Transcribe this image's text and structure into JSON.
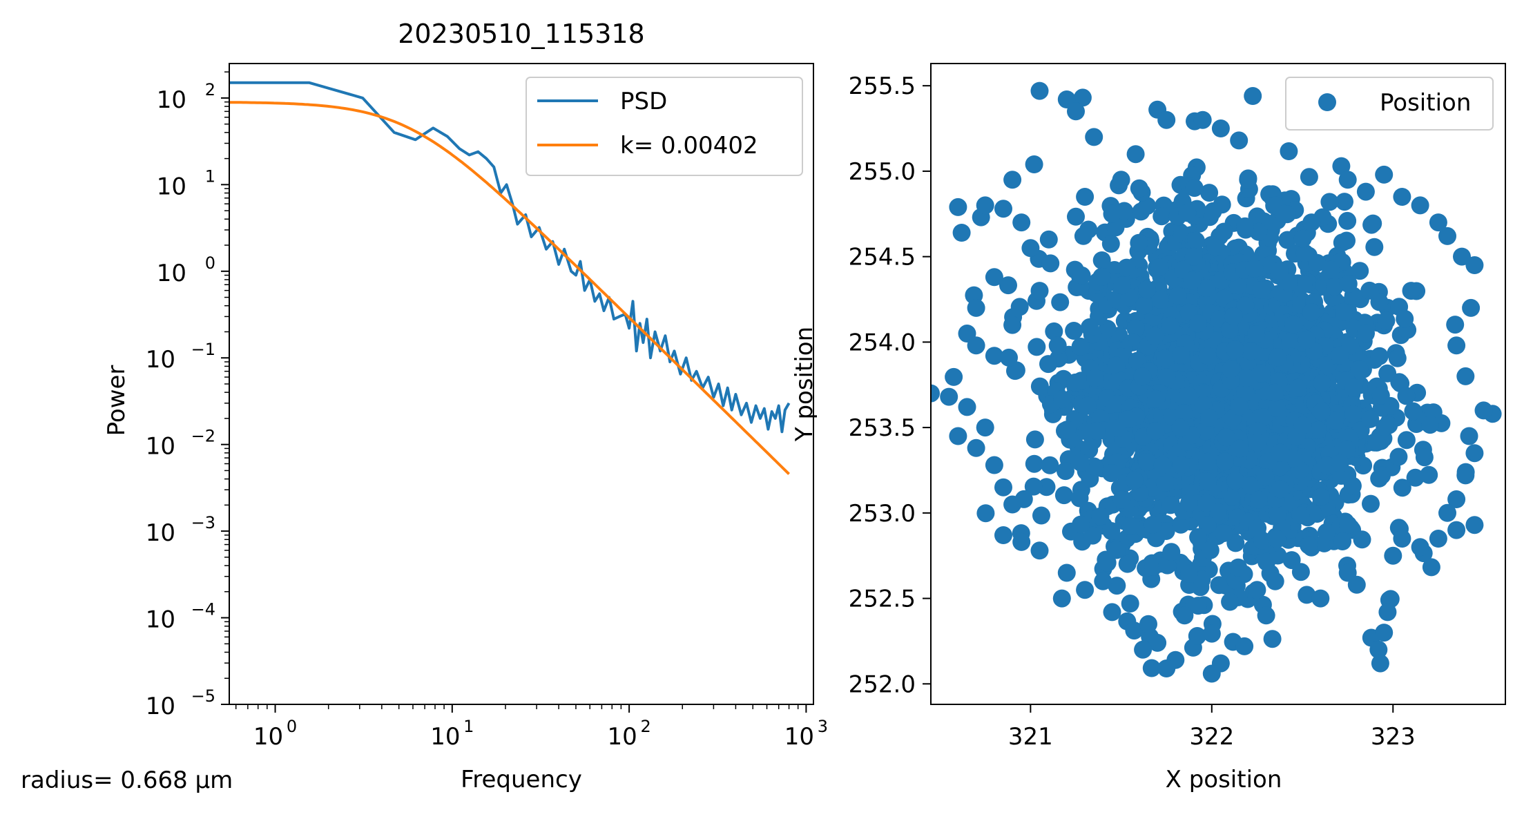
{
  "footnote": "radius= 0.668 µm",
  "colors": {
    "psd": "#1f77b4",
    "fit": "#ff7f0e",
    "position": "#1f77b4",
    "axes": "#000000"
  },
  "chart_data": [
    {
      "type": "line",
      "title": "20230510_115318",
      "xlabel": "Frequency",
      "ylabel": "Power",
      "xscale": "log",
      "yscale": "log",
      "xlim": [
        0.55,
        1100
      ],
      "ylim": [
        1e-05,
        250
      ],
      "x_ticks": [
        {
          "value": 1,
          "label": "10",
          "exp": "0"
        },
        {
          "value": 10,
          "label": "10",
          "exp": "1"
        },
        {
          "value": 100,
          "label": "10",
          "exp": "2"
        },
        {
          "value": 1000,
          "label": "10",
          "exp": "3"
        }
      ],
      "y_ticks": [
        {
          "value": 100,
          "label": "10",
          "exp": "2"
        },
        {
          "value": 10,
          "label": "10",
          "exp": "1"
        },
        {
          "value": 1,
          "label": "10",
          "exp": "0"
        },
        {
          "value": 0.1,
          "label": "10",
          "exp": "−1"
        },
        {
          "value": 0.01,
          "label": "10",
          "exp": "−2"
        },
        {
          "value": 0.001,
          "label": "10",
          "exp": "−3"
        },
        {
          "value": 0.0001,
          "label": "10",
          "exp": "−4"
        },
        {
          "value": 1e-05,
          "label": "10",
          "exp": "−5"
        }
      ],
      "legend": {
        "placement": "upper right"
      },
      "series": [
        {
          "name": "PSD",
          "color": "#1f77b4",
          "x": [
            0.55,
            1.56,
            3.12,
            4.7,
            6.2,
            7.8,
            9.4,
            11,
            12.5,
            14,
            15.6,
            17.2,
            18.8,
            20.3,
            21.9,
            23.4,
            26,
            28,
            31,
            34,
            37,
            40,
            43,
            47,
            50,
            53,
            56,
            60,
            64,
            68,
            72,
            77,
            82,
            88,
            95,
            100,
            105,
            110,
            115,
            120,
            126,
            132,
            140,
            150,
            160,
            170,
            180,
            195,
            210,
            225,
            240,
            260,
            280,
            300,
            320,
            340,
            360,
            380,
            400,
            430,
            460,
            490,
            520,
            550,
            580,
            610,
            640,
            670,
            700,
            730,
            760,
            800
          ],
          "y": [
            150,
            150,
            100,
            40,
            33,
            45,
            36,
            26,
            22,
            24,
            20,
            16,
            8,
            10,
            6,
            3.5,
            4.5,
            2.5,
            3.2,
            1.8,
            2.2,
            1.2,
            1.8,
            1.0,
            0.9,
            1.3,
            0.6,
            0.8,
            0.45,
            0.55,
            0.35,
            0.5,
            0.28,
            0.3,
            0.32,
            0.22,
            0.45,
            0.12,
            0.25,
            0.15,
            0.28,
            0.1,
            0.2,
            0.12,
            0.18,
            0.09,
            0.12,
            0.065,
            0.1,
            0.055,
            0.07,
            0.045,
            0.06,
            0.035,
            0.05,
            0.028,
            0.045,
            0.025,
            0.038,
            0.022,
            0.03,
            0.018,
            0.028,
            0.02,
            0.026,
            0.015,
            0.024,
            0.02,
            0.028,
            0.014,
            0.025,
            0.03
          ]
        },
        {
          "name": "k= 0.00402",
          "color": "#ff7f0e",
          "model": "lorentzian",
          "fit": {
            "p0": 90,
            "fc": 5.7
          },
          "x_range": [
            0.55,
            800
          ]
        }
      ]
    },
    {
      "type": "scatter",
      "xlabel": "X position",
      "ylabel": "Y position",
      "xlim": [
        320.45,
        323.62
      ],
      "ylim": [
        251.88,
        255.63
      ],
      "x_ticks": [
        321,
        322,
        323
      ],
      "x_tick_labels": [
        "321",
        "322",
        "323"
      ],
      "y_ticks": [
        252.0,
        252.5,
        253.0,
        253.5,
        254.0,
        254.5,
        255.0,
        255.5
      ],
      "y_tick_labels": [
        "252.0",
        "252.5",
        "253.0",
        "253.5",
        "254.0",
        "254.5",
        "255.0",
        "255.5"
      ],
      "legend": {
        "placement": "upper right"
      },
      "series": [
        {
          "name": "Position",
          "color": "#1f77b4",
          "distribution": {
            "center": [
              322.08,
              253.72
            ],
            "sd_x": 0.4,
            "sd_y": 0.48
          },
          "points": [
            [
              321.05,
              255.47
            ],
            [
              321.2,
              255.42
            ],
            [
              321.25,
              255.35
            ],
            [
              321.35,
              255.2
            ],
            [
              321.58,
              255.1
            ],
            [
              321.7,
              255.36
            ],
            [
              321.75,
              255.3
            ],
            [
              321.95,
              255.3
            ],
            [
              322.05,
              255.25
            ],
            [
              322.15,
              255.18
            ],
            [
              321.02,
              255.04
            ],
            [
              320.9,
              254.95
            ],
            [
              320.75,
              254.8
            ],
            [
              320.6,
              254.79
            ],
            [
              320.62,
              254.64
            ],
            [
              320.85,
              254.78
            ],
            [
              320.95,
              254.7
            ],
            [
              321.0,
              254.55
            ],
            [
              320.8,
              254.38
            ],
            [
              320.7,
              254.2
            ],
            [
              320.65,
              254.05
            ],
            [
              320.7,
              253.98
            ],
            [
              320.8,
              253.92
            ],
            [
              321.15,
              253.98
            ],
            [
              320.9,
              254.1
            ],
            [
              321.05,
              254.3
            ],
            [
              320.45,
              253.7
            ],
            [
              320.55,
              253.68
            ],
            [
              320.65,
              253.62
            ],
            [
              320.6,
              253.45
            ],
            [
              320.75,
              253.5
            ],
            [
              320.7,
              253.38
            ],
            [
              320.8,
              253.28
            ],
            [
              320.85,
              253.15
            ],
            [
              320.9,
              253.05
            ],
            [
              320.85,
              252.87
            ],
            [
              320.95,
              252.83
            ],
            [
              321.05,
              252.78
            ],
            [
              321.2,
              252.65
            ],
            [
              321.3,
              252.55
            ],
            [
              321.45,
              252.42
            ],
            [
              321.55,
              252.47
            ],
            [
              321.65,
              252.35
            ],
            [
              321.7,
              252.24
            ],
            [
              321.62,
              252.2
            ],
            [
              321.8,
              252.14
            ],
            [
              321.75,
              252.09
            ],
            [
              321.85,
              252.4
            ],
            [
              321.92,
              252.28
            ],
            [
              322.05,
              252.12
            ],
            [
              322.0,
              252.06
            ],
            [
              322.18,
              252.22
            ],
            [
              322.1,
              252.48
            ],
            [
              322.25,
              252.55
            ],
            [
              322.35,
              252.6
            ],
            [
              322.6,
              252.5
            ],
            [
              322.75,
              252.65
            ],
            [
              322.8,
              252.58
            ],
            [
              322.88,
              252.27
            ],
            [
              322.95,
              252.3
            ],
            [
              322.92,
              252.2
            ],
            [
              322.93,
              252.12
            ],
            [
              322.97,
              252.42
            ],
            [
              323.0,
              252.75
            ],
            [
              323.05,
              252.85
            ],
            [
              323.15,
              252.8
            ],
            [
              323.25,
              252.85
            ],
            [
              323.35,
              252.9
            ],
            [
              323.45,
              252.93
            ],
            [
              323.55,
              253.58
            ],
            [
              323.5,
              253.6
            ],
            [
              323.42,
              253.45
            ],
            [
              323.45,
              253.35
            ],
            [
              323.4,
              253.22
            ],
            [
              323.35,
              253.08
            ],
            [
              323.3,
              253.0
            ],
            [
              323.4,
              253.8
            ],
            [
              323.35,
              253.98
            ],
            [
              323.43,
              254.2
            ],
            [
              323.45,
              254.45
            ],
            [
              323.38,
              254.5
            ],
            [
              323.3,
              254.62
            ],
            [
              323.25,
              254.7
            ],
            [
              323.15,
              254.8
            ],
            [
              323.05,
              254.85
            ],
            [
              322.95,
              254.98
            ],
            [
              322.85,
              254.88
            ],
            [
              322.75,
              254.95
            ],
            [
              322.65,
              254.82
            ],
            [
              322.55,
              254.7
            ],
            [
              322.35,
              254.8
            ],
            [
              322.2,
              254.95
            ],
            [
              322.4,
              254.75
            ],
            [
              321.6,
              254.9
            ],
            [
              321.45,
              254.75
            ],
            [
              321.3,
              254.85
            ],
            [
              321.5,
              254.95
            ],
            [
              322.3,
              252.4
            ],
            [
              321.4,
              252.6
            ],
            [
              323.1,
              254.3
            ]
          ]
        }
      ]
    }
  ]
}
